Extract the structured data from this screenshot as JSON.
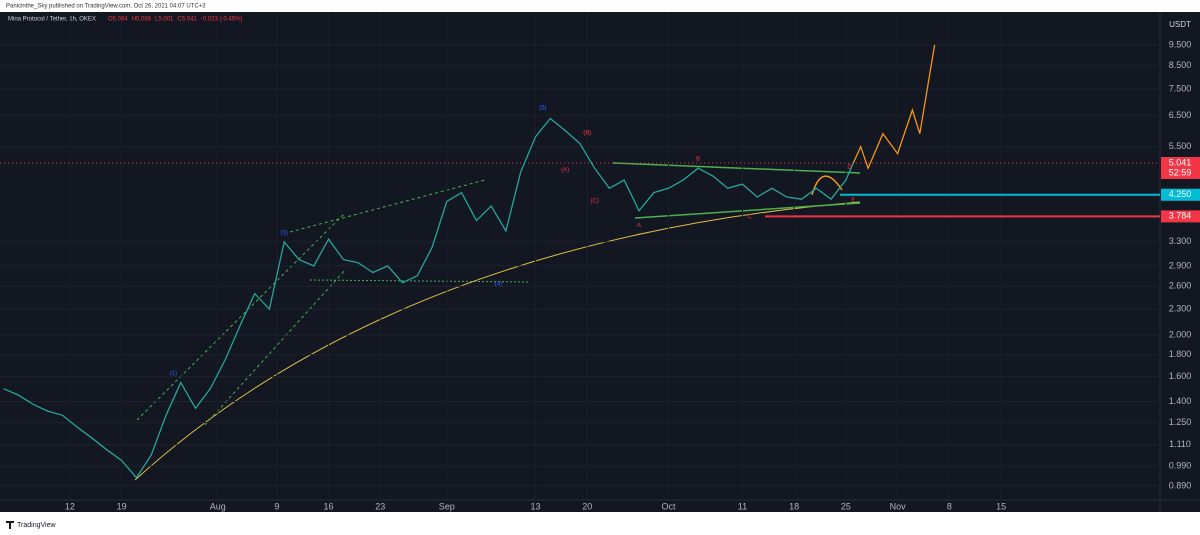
{
  "chart_data": {
    "type": "line",
    "publisher": "Panicinthe_Sky published on TradingView.com, Oct 26, 2021 04:07 UTC+3",
    "symbol": "Mina Protocol / Tether, 1h, OKEX",
    "ohlc": [
      "O5.064",
      "H5.086",
      "L5.001",
      "C5.041",
      "-0.023 (-0.45%)"
    ],
    "currency": "USDT",
    "brand": "TradingView",
    "log_scale": true,
    "xlim": [
      "2021-07-02T13:00",
      "2021-12-06T12:00"
    ],
    "ylim": [
      0.825,
      11.34
    ],
    "xticks": [
      {
        "value": "2021-07-12",
        "label": "12"
      },
      {
        "value": "2021-07-19",
        "label": "19"
      },
      {
        "value": "2021-08-01",
        "label": "Aug"
      },
      {
        "value": "2021-08-09",
        "label": "9"
      },
      {
        "value": "2021-08-16",
        "label": "16"
      },
      {
        "value": "2021-08-23",
        "label": "23"
      },
      {
        "value": "2021-09-01",
        "label": "Sep"
      },
      {
        "value": "2021-09-13",
        "label": "13"
      },
      {
        "value": "2021-09-20",
        "label": "20"
      },
      {
        "value": "2021-10-01",
        "label": "Oct"
      },
      {
        "value": "2021-10-11",
        "label": "11"
      },
      {
        "value": "2021-10-18",
        "label": "18"
      },
      {
        "value": "2021-10-25",
        "label": "25"
      },
      {
        "value": "2021-11-01",
        "label": "Nov"
      },
      {
        "value": "2021-11-08",
        "label": "8"
      },
      {
        "value": "2021-11-15",
        "label": "15"
      }
    ],
    "yticks": [
      {
        "value": 9.5,
        "label": "9.500"
      },
      {
        "value": 8.5,
        "label": "8.500"
      },
      {
        "value": 7.5,
        "label": "7.500"
      },
      {
        "value": 6.5,
        "label": "6.500"
      },
      {
        "value": 5.5,
        "label": "5.500"
      },
      {
        "value": 3.3,
        "label": "3.300"
      },
      {
        "value": 2.9,
        "label": "2.900"
      },
      {
        "value": 2.6,
        "label": "2.600"
      },
      {
        "value": 2.3,
        "label": "2.300"
      },
      {
        "value": 2,
        "label": "2.000"
      },
      {
        "value": 1.8,
        "label": "1.800"
      },
      {
        "value": 1.6,
        "label": "1.600"
      },
      {
        "value": 1.4,
        "label": "1.400"
      },
      {
        "value": 1.25,
        "label": "1.250"
      },
      {
        "value": 1.11,
        "label": "1.110"
      },
      {
        "value": 0.99,
        "label": "0.990"
      },
      {
        "value": 0.89,
        "label": "0.890"
      }
    ],
    "price_labels": [
      {
        "value": 5.041,
        "label": "5.041",
        "color": "#f23645",
        "timer": "52:59"
      },
      {
        "value": 4.25,
        "label": "4.250",
        "color": "#00bcd4"
      },
      {
        "value": 3.784,
        "label": "3.784",
        "color": "#f23645"
      }
    ],
    "series": [
      {
        "color": "#26a69a",
        "x": [
          "2021-07-03",
          "2021-07-05",
          "2021-07-07",
          "2021-07-09",
          "2021-07-11",
          "2021-07-13",
          "2021-07-15",
          "2021-07-17",
          "2021-07-19",
          "2021-07-21",
          "2021-07-23",
          "2021-07-25",
          "2021-07-27",
          "2021-07-29",
          "2021-07-31",
          "2021-08-02",
          "2021-08-04",
          "2021-08-06",
          "2021-08-08",
          "2021-08-10",
          "2021-08-12",
          "2021-08-14",
          "2021-08-16",
          "2021-08-18",
          "2021-08-20",
          "2021-08-22",
          "2021-08-24",
          "2021-08-26",
          "2021-08-28",
          "2021-08-30",
          "2021-09-01",
          "2021-09-03",
          "2021-09-05",
          "2021-09-07",
          "2021-09-09",
          "2021-09-11",
          "2021-09-13",
          "2021-09-15",
          "2021-09-17",
          "2021-09-19",
          "2021-09-21",
          "2021-09-23",
          "2021-09-25",
          "2021-09-27",
          "2021-09-29",
          "2021-10-01",
          "2021-10-03",
          "2021-10-05",
          "2021-10-07",
          "2021-10-09",
          "2021-10-11",
          "2021-10-13",
          "2021-10-15",
          "2021-10-17",
          "2021-10-19",
          "2021-10-21",
          "2021-10-23",
          "2021-10-25",
          "2021-10-26"
        ],
        "values": [
          1.5,
          1.45,
          1.38,
          1.33,
          1.3,
          1.22,
          1.15,
          1.08,
          1.02,
          0.93,
          1.05,
          1.3,
          1.55,
          1.35,
          1.5,
          1.75,
          2.1,
          2.5,
          2.3,
          3.3,
          3.0,
          2.9,
          3.35,
          3.0,
          2.95,
          2.8,
          2.9,
          2.65,
          2.75,
          3.2,
          4.1,
          4.3,
          3.7,
          4.0,
          3.5,
          4.8,
          5.8,
          6.4,
          6.0,
          5.6,
          4.9,
          4.4,
          4.6,
          3.9,
          4.3,
          4.4,
          4.6,
          4.9,
          4.7,
          4.4,
          4.5,
          4.2,
          4.4,
          4.2,
          4.15,
          4.4,
          4.15,
          4.6,
          5.04
        ]
      },
      {
        "color": "#f7931a",
        "x": [
          "2021-10-26",
          "2021-10-27",
          "2021-10-28",
          "2021-10-30",
          "2021-11-01",
          "2021-11-03",
          "2021-11-04",
          "2021-11-06"
        ],
        "values": [
          5.04,
          5.5,
          4.9,
          5.9,
          5.3,
          6.7,
          5.9,
          9.5
        ]
      }
    ],
    "annotations": [
      {
        "text": "(1)",
        "x": "2021-07-26",
        "y": 1.63,
        "color": "#2962ff"
      },
      {
        "text": "(3)",
        "x": "2021-08-10",
        "y": 3.46,
        "color": "#2962ff"
      },
      {
        "text": "(4)",
        "x": "2021-09-08",
        "y": 2.63,
        "color": "#2962ff"
      },
      {
        "text": "(5)",
        "x": "2021-09-14",
        "y": 6.77,
        "color": "#2962ff"
      },
      {
        "text": "(A)",
        "x": "2021-09-17",
        "y": 4.85,
        "color": "#f23645"
      },
      {
        "text": "(B)",
        "x": "2021-09-20",
        "y": 5.92,
        "color": "#f23645"
      },
      {
        "text": "(C)",
        "x": "2021-09-21",
        "y": 4.11,
        "color": "#f23645"
      },
      {
        "text": "A",
        "x": "2021-09-27",
        "y": 3.6,
        "color": "#f23645"
      },
      {
        "text": "B",
        "x": "2021-10-05",
        "y": 5.15,
        "color": "#f23645"
      },
      {
        "text": "C",
        "x": "2021-10-12",
        "y": 3.77,
        "color": "#f23645"
      },
      {
        "text": "D",
        "x": "2021-10-25T12:00",
        "y": 4.93,
        "color": "#f23645"
      },
      {
        "text": "E",
        "x": "2021-10-26",
        "y": 4.13,
        "color": "#f23645"
      }
    ]
  }
}
